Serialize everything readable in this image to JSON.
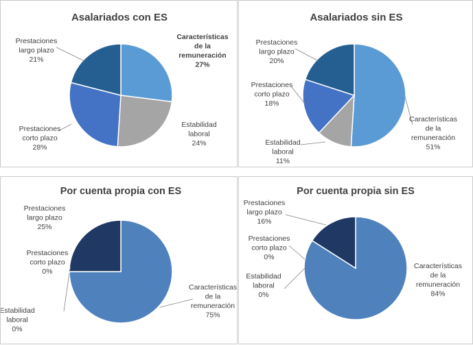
{
  "chart_data": [
    {
      "type": "pie",
      "title": "Asalariados con ES",
      "slices": [
        {
          "label": [
            "Características",
            "de la",
            "remuneración"
          ],
          "value": 27,
          "display": "27%",
          "color": "#5b9bd5",
          "bold": true
        },
        {
          "label": [
            "Estabilidad",
            "laboral"
          ],
          "value": 24,
          "display": "24%",
          "color": "#a5a5a5",
          "bold": false
        },
        {
          "label": [
            "Prestaciones",
            "corto plazo"
          ],
          "value": 28,
          "display": "28%",
          "color": "#4472c4",
          "bold": false
        },
        {
          "label": [
            "Prestaciones",
            "largo plazo"
          ],
          "value": 21,
          "display": "21%",
          "color": "#255e91",
          "bold": false
        }
      ]
    },
    {
      "type": "pie",
      "title": "Asalariados sin ES",
      "slices": [
        {
          "label": [
            "Características",
            "de la",
            "remuneración"
          ],
          "value": 51,
          "display": "51%",
          "color": "#5b9bd5",
          "bold": false
        },
        {
          "label": [
            "Estabilidad",
            "laboral"
          ],
          "value": 11,
          "display": "11%",
          "color": "#a5a5a5",
          "bold": false
        },
        {
          "label": [
            "Prestaciones",
            "corto plazo"
          ],
          "value": 18,
          "display": "18%",
          "color": "#4472c4",
          "bold": false
        },
        {
          "label": [
            "Prestaciones",
            "largo plazo"
          ],
          "value": 20,
          "display": "20%",
          "color": "#255e91",
          "bold": false
        }
      ]
    },
    {
      "type": "pie",
      "title": "Por cuenta propia con ES",
      "slices": [
        {
          "label": [
            "Características",
            "de la",
            "remuneración"
          ],
          "value": 75,
          "display": "75%",
          "color": "#4f81bd",
          "bold": false
        },
        {
          "label": [
            "Estabilidad",
            "laboral"
          ],
          "value": 0,
          "display": "0%",
          "color": "#c0504d",
          "bold": false
        },
        {
          "label": [
            "Prestaciones",
            "corto plazo"
          ],
          "value": 0,
          "display": "0%",
          "color": "#9bbb59",
          "bold": false
        },
        {
          "label": [
            "Prestaciones",
            "largo plazo"
          ],
          "value": 25,
          "display": "25%",
          "color": "#1f3864",
          "bold": false
        }
      ]
    },
    {
      "type": "pie",
      "title": "Por cuenta propia sin ES",
      "slices": [
        {
          "label": [
            "Características",
            "de la",
            "remuneración"
          ],
          "value": 84,
          "display": "84%",
          "color": "#4f81bd",
          "bold": false
        },
        {
          "label": [
            "Estabilidad",
            "laboral"
          ],
          "value": 0,
          "display": "0%",
          "color": "#c0504d",
          "bold": false
        },
        {
          "label": [
            "Prestaciones",
            "corto plazo"
          ],
          "value": 0,
          "display": "0%",
          "color": "#9bbb59",
          "bold": false
        },
        {
          "label": [
            "Prestaciones",
            "largo plazo"
          ],
          "value": 16,
          "display": "16%",
          "color": "#1f3864",
          "bold": false
        }
      ]
    }
  ]
}
